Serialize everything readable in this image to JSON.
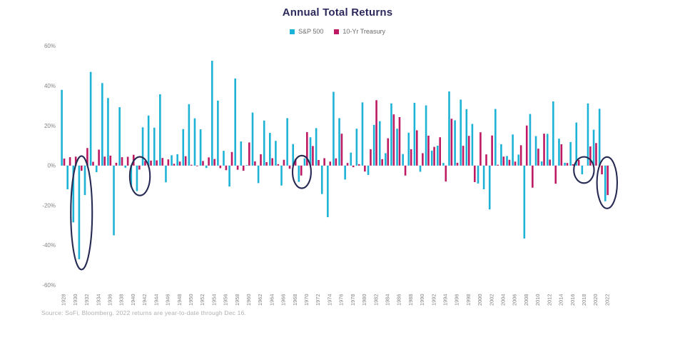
{
  "title": "Annual Total Returns",
  "legend": [
    {
      "label": "S&P 500",
      "color": "#1db3d6"
    },
    {
      "label": "10-Yr Treasury",
      "color": "#bd1a63"
    }
  ],
  "source_note": "Source: SoFi, Bloomberg. 2022 returns are year-to-date through Dec 16.",
  "colors": {
    "sp500": "#1db3d6",
    "treasury": "#bd1a63",
    "title": "#2c2a5c",
    "axis_text": "#808285",
    "annotation_stroke": "#272b54",
    "baseline": "#ebebeb",
    "source_text": "#aeb0b3"
  },
  "chart_data": {
    "type": "bar",
    "title": "Annual Total Returns",
    "ylabel": "",
    "xlabel": "",
    "ylim": [
      -60,
      60
    ],
    "grid": false,
    "legend_position": "top",
    "yticks": [
      "60%",
      "40%",
      "20%",
      "0%",
      "-20%",
      "-40%",
      "-60%"
    ],
    "xtick_every": 2,
    "categories": [
      1928,
      1929,
      1930,
      1931,
      1932,
      1933,
      1934,
      1935,
      1936,
      1937,
      1938,
      1939,
      1940,
      1941,
      1942,
      1943,
      1944,
      1945,
      1946,
      1947,
      1948,
      1949,
      1950,
      1951,
      1952,
      1953,
      1954,
      1955,
      1956,
      1957,
      1958,
      1959,
      1960,
      1961,
      1962,
      1963,
      1964,
      1965,
      1966,
      1967,
      1968,
      1969,
      1970,
      1971,
      1972,
      1973,
      1974,
      1975,
      1976,
      1977,
      1978,
      1979,
      1980,
      1981,
      1982,
      1983,
      1984,
      1985,
      1986,
      1987,
      1988,
      1989,
      1990,
      1991,
      1992,
      1993,
      1994,
      1995,
      1996,
      1997,
      1998,
      1999,
      2000,
      2001,
      2002,
      2003,
      2004,
      2005,
      2006,
      2007,
      2008,
      2009,
      2010,
      2011,
      2012,
      2013,
      2014,
      2015,
      2016,
      2017,
      2018,
      2019,
      2020,
      2021,
      2022
    ],
    "series": [
      {
        "name": "S&P 500",
        "color": "#1db3d6",
        "values": [
          38.0,
          -11.9,
          -28.5,
          -47.0,
          -14.8,
          47.0,
          -3.3,
          41.4,
          33.9,
          -35.0,
          29.3,
          -1.1,
          -10.7,
          -12.8,
          19.2,
          25.1,
          19.0,
          35.8,
          -8.4,
          5.2,
          5.7,
          18.3,
          30.8,
          23.7,
          18.2,
          -1.2,
          52.6,
          32.6,
          7.4,
          -10.5,
          43.7,
          12.1,
          0.3,
          26.6,
          -8.8,
          22.6,
          16.4,
          12.4,
          -10.0,
          23.8,
          10.8,
          -8.2,
          3.6,
          14.2,
          18.8,
          -14.3,
          -25.9,
          37.0,
          23.8,
          -7.0,
          6.5,
          18.5,
          31.7,
          -4.7,
          20.4,
          22.3,
          6.2,
          31.2,
          18.5,
          5.8,
          16.5,
          31.5,
          -3.1,
          30.2,
          7.5,
          10.0,
          1.3,
          37.2,
          22.7,
          33.1,
          28.3,
          20.9,
          -9.0,
          -11.9,
          -22.0,
          28.4,
          10.7,
          4.8,
          15.6,
          5.5,
          -36.6,
          25.9,
          14.8,
          2.1,
          15.9,
          32.2,
          13.5,
          1.4,
          11.8,
          21.6,
          -4.4,
          31.2,
          18.0,
          28.5,
          -17.9
        ]
      },
      {
        "name": "10-Yr Treasury",
        "color": "#bd1a63",
        "values": [
          3.5,
          4.2,
          4.5,
          -2.6,
          8.8,
          1.9,
          8.0,
          4.5,
          5.0,
          1.4,
          4.2,
          4.4,
          5.4,
          -2.0,
          2.3,
          2.5,
          2.6,
          3.8,
          3.1,
          0.9,
          2.0,
          4.7,
          0.4,
          -0.3,
          2.3,
          4.1,
          3.3,
          -1.3,
          -2.3,
          6.8,
          -2.1,
          -2.6,
          11.6,
          2.1,
          5.7,
          1.7,
          3.7,
          0.7,
          2.9,
          -1.6,
          3.3,
          -5.0,
          16.8,
          9.8,
          2.8,
          3.7,
          2.0,
          3.6,
          16.0,
          1.3,
          -0.8,
          0.7,
          -3.0,
          8.2,
          32.8,
          3.2,
          13.7,
          25.7,
          24.3,
          -5.0,
          8.2,
          17.7,
          6.2,
          15.0,
          9.4,
          14.2,
          -8.0,
          23.5,
          1.4,
          9.9,
          14.9,
          -8.3,
          16.7,
          5.6,
          15.1,
          0.4,
          4.5,
          2.9,
          2.0,
          10.2,
          20.1,
          -11.1,
          8.5,
          16.0,
          3.0,
          -9.1,
          10.7,
          1.3,
          0.7,
          2.8,
          0.0,
          9.6,
          11.3,
          -4.4,
          -14.8
        ]
      }
    ],
    "annotations": [
      {
        "type": "ellipse",
        "note": "circled-years-1930-1932",
        "cx_year": 1931.2,
        "cy_value": -23.7,
        "rx_years": 1.85,
        "ry_value": 28.5
      },
      {
        "type": "ellipse",
        "note": "circled-years-1940-1941",
        "cx_year": 1941.3,
        "cy_value": -5.3,
        "rx_years": 1.75,
        "ry_value": 9.7
      },
      {
        "type": "ellipse",
        "note": "circled-year-1969",
        "cx_year": 1969.3,
        "cy_value": -3.2,
        "rx_years": 1.6,
        "ry_value": 8.2
      },
      {
        "type": "ellipse",
        "note": "circled-year-2018",
        "cx_year": 2018.1,
        "cy_value": -2.2,
        "rx_years": 1.75,
        "ry_value": 6.6
      },
      {
        "type": "ellipse",
        "note": "circled-year-2022",
        "cx_year": 2022.1,
        "cy_value": -8.6,
        "rx_years": 1.75,
        "ry_value": 12.9
      }
    ]
  }
}
